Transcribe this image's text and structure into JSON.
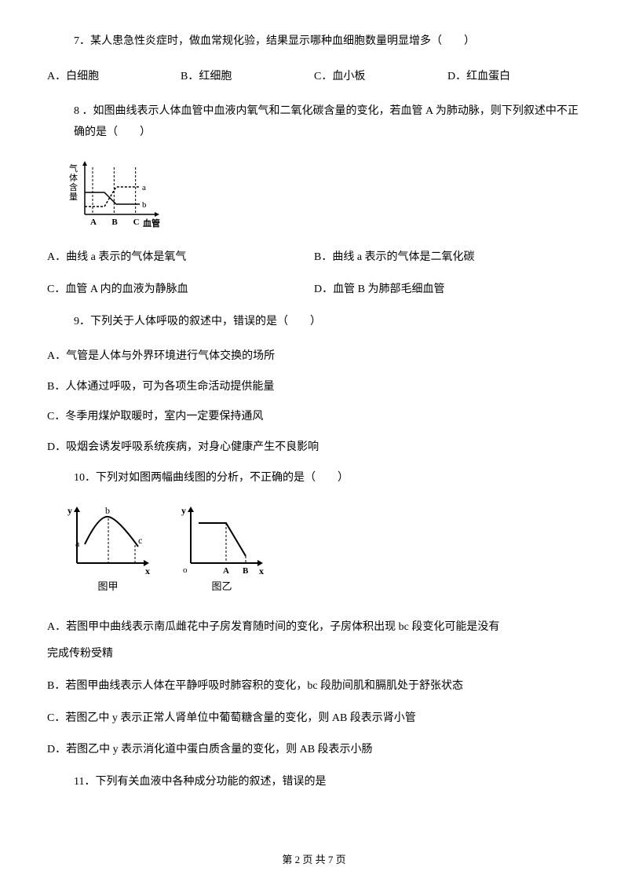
{
  "q7": {
    "text": "7．某人患急性炎症时，做血常规化验，结果显示哪种血细胞数量明显增多（　　）",
    "A": "A．白细胞",
    "B": "B．红细胞",
    "C": "C．血小板",
    "D": "D．红血蛋白"
  },
  "q8": {
    "text": "8 ．如图曲线表示人体血管中血液内氧气和二氧化碳含量的变化，若血管 A 为肺动脉，则下列叙述中不正确的是（　　）",
    "A": "A．曲线 a 表示的气体是氧气",
    "B": "B．曲线 a 表示的气体是二氧化碳",
    "C": "C．血管 A 内的血液为静脉血",
    "D": "D．血管 B 为肺部毛细血管",
    "chart": {
      "ylabel": "气体含量",
      "xlabel": "血管",
      "xticks": [
        "A",
        "B",
        "C"
      ],
      "curve_a": {
        "label": "a",
        "points": [
          [
            0,
            55
          ],
          [
            25,
            55
          ],
          [
            40,
            30
          ],
          [
            70,
            30
          ]
        ]
      },
      "curve_b": {
        "label": "b",
        "points": [
          [
            0,
            37
          ],
          [
            25,
            37
          ],
          [
            40,
            52
          ],
          [
            70,
            52
          ]
        ]
      },
      "axis_color": "#000000",
      "line_colors": "#000000",
      "dash": "3,2",
      "width": 130,
      "height": 95
    }
  },
  "q9": {
    "text": "9．下列关于人体呼吸的叙述中，错误的是（　　）",
    "A": "A．气管是人体与外界环境进行气体交换的场所",
    "B": "B．人体通过呼吸，可为各项生命活动提供能量",
    "C": "C．冬季用煤炉取暖时，室内一定要保持通风",
    "D": "D．吸烟会诱发呼吸系统疾病，对身心健康产生不良影响"
  },
  "q10": {
    "text": "10．下列对如图两幅曲线图的分析，不正确的是（　　）",
    "A1": "A．若图甲中曲线表示南瓜雌花中子房发育随时间的变化，子房体积出现 bc 段变化可能是没有",
    "A2": "完成传粉受精",
    "B": "B．若图甲曲线表示人体在平静呼吸时肺容积的变化，bc 段肋间肌和膈肌处于舒张状态",
    "C": "C．若图乙中 y 表示正常人肾单位中葡萄糖含量的变化，则 AB 段表示肾小管",
    "D": "D．若图乙中 y 表示消化道中蛋白质含量的变化，则 AB 段表示小肠",
    "chart1": {
      "caption": "图甲",
      "xlabel": "x",
      "ylabel": "y",
      "labels": {
        "a": "a",
        "b": "b",
        "c": "c"
      },
      "curve": [
        [
          10,
          45
        ],
        [
          20,
          30
        ],
        [
          35,
          15
        ],
        [
          50,
          18
        ],
        [
          72,
          45
        ],
        [
          88,
          50
        ]
      ],
      "width": 115,
      "height": 95,
      "axis_color": "#000000"
    },
    "chart2": {
      "caption": "图乙",
      "xlabel": "x",
      "ylabel": "y",
      "xticks": [
        "A",
        "B"
      ],
      "origin": "o",
      "curve": [
        [
          10,
          18
        ],
        [
          45,
          18
        ],
        [
          70,
          60
        ]
      ],
      "width": 115,
      "height": 95,
      "axis_color": "#000000"
    }
  },
  "q11": {
    "text": "11．下列有关血液中各种成分功能的叙述，错误的是"
  },
  "footer": {
    "text": "第 2 页 共 7 页"
  }
}
